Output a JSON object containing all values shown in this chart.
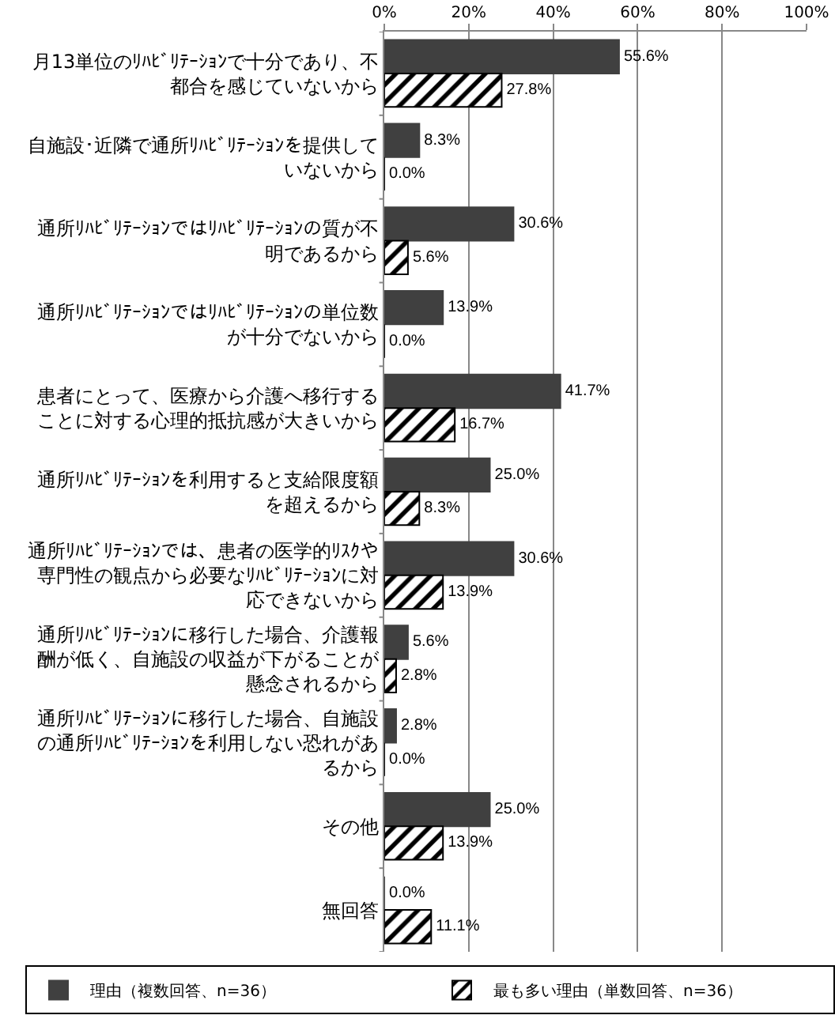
{
  "chart_data": {
    "type": "bar",
    "orientation": "horizontal",
    "categories": [
      "月13単位のﾘﾊﾋﾞﾘﾃｰｼｮﾝで十分であり、不都合を感じていないから",
      "自施設･近隣で通所ﾘﾊﾋﾞﾘﾃｰｼｮﾝを提供していないから",
      "通所ﾘﾊﾋﾞﾘﾃｰｼｮﾝではﾘﾊﾋﾞﾘﾃｰｼｮﾝの質が不明であるから",
      "通所ﾘﾊﾋﾞﾘﾃｰｼｮﾝではﾘﾊﾋﾞﾘﾃｰｼｮﾝの単位数が十分でないから",
      "患者にとって、医療から介護へ移行することに対する心理的抵抗感が大きいから",
      "通所ﾘﾊﾋﾞﾘﾃｰｼｮﾝを利用すると支給限度額を超えるから",
      "通所ﾘﾊﾋﾞﾘﾃｰｼｮﾝでは、患者の医学的ﾘｽｸや専門性の観点から必要なﾘﾊﾋﾞﾘﾃｰｼｮﾝに対応できないから",
      "通所ﾘﾊﾋﾞﾘﾃｰｼｮﾝに移行した場合、介護報酬が低く、自施設の収益が下がることが懸念されるから",
      "通所ﾘﾊﾋﾞﾘﾃｰｼｮﾝに移行した場合、自施設の通所ﾘﾊﾋﾞﾘﾃｰｼｮﾝを利用しない恐れがあるから",
      "その他",
      "無回答"
    ],
    "series": [
      {
        "name": "理由（複数回答、n=36）",
        "color": "#404040",
        "values": [
          55.6,
          8.3,
          30.6,
          13.9,
          41.7,
          25.0,
          30.6,
          5.6,
          2.8,
          25.0,
          0.0
        ],
        "value_labels": [
          "55.6%",
          "8.3%",
          "30.6%",
          "13.9%",
          "41.7%",
          "25.0%",
          "30.6%",
          "5.6%",
          "2.8%",
          "25.0%",
          "0.0%"
        ]
      },
      {
        "name": "最も多い理由（単数回答、n=36）",
        "color": "#000000",
        "values": [
          27.8,
          0.0,
          5.6,
          0.0,
          16.7,
          8.3,
          13.9,
          2.8,
          0.0,
          13.9,
          11.1
        ],
        "value_labels": [
          "27.8%",
          "0.0%",
          "5.6%",
          "0.0%",
          "16.7%",
          "8.3%",
          "13.9%",
          "2.8%",
          "0.0%",
          "13.9%",
          "11.1%"
        ]
      }
    ],
    "xlim": [
      0,
      100
    ],
    "xticks": [
      {
        "value": 0,
        "label": "0%"
      },
      {
        "value": 20,
        "label": "20%"
      },
      {
        "value": 40,
        "label": "40%"
      },
      {
        "value": 60,
        "label": "60%"
      },
      {
        "value": 80,
        "label": "80%"
      },
      {
        "value": 100,
        "label": "100%"
      }
    ],
    "grid": "x",
    "legend": "bottom"
  }
}
